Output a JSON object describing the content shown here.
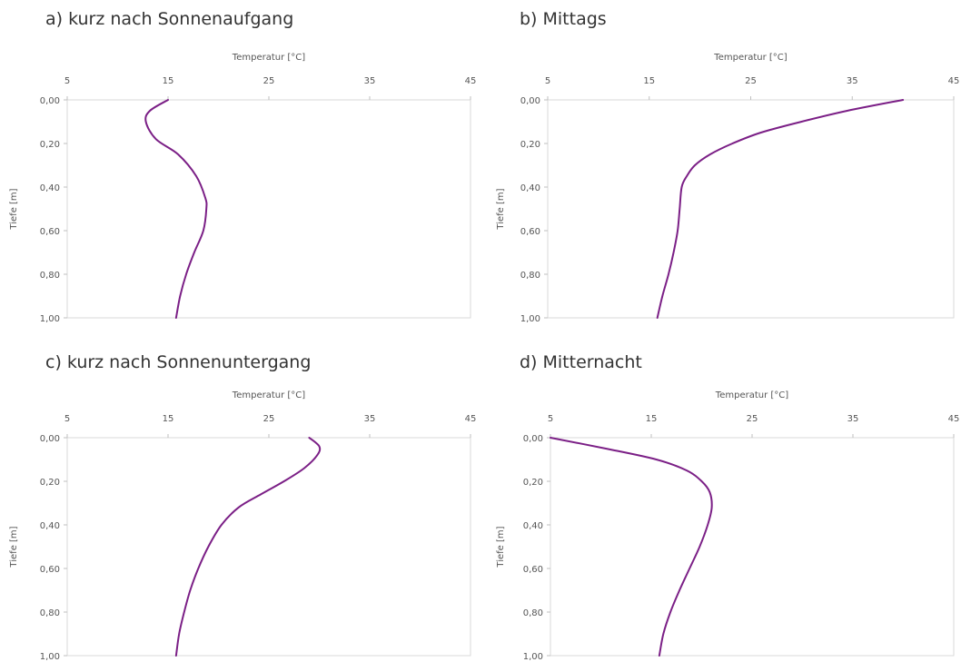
{
  "chart_data": [
    {
      "type": "line",
      "title": "a) kurz nach Sonnenaufgang",
      "xlabel": "Temperatur [°C]",
      "ylabel": "Tiefe [m]",
      "xlim": [
        5,
        45
      ],
      "ylim": [
        0,
        1
      ],
      "x_axis_position": "top",
      "y_axis_inverted": true,
      "x_ticks": [
        "5",
        "15",
        "25",
        "35",
        "45"
      ],
      "y_ticks": [
        "0,00",
        "0,20",
        "0,40",
        "0,60",
        "0,80",
        "1,00"
      ],
      "grid": false,
      "series": [
        {
          "color": "#7b1f86",
          "points": [
            {
              "temperature": 15.0,
              "depth": 0.0
            },
            {
              "temperature": 13.2,
              "depth": 0.05
            },
            {
              "temperature": 12.8,
              "depth": 0.1
            },
            {
              "temperature": 13.8,
              "depth": 0.18
            },
            {
              "temperature": 16.0,
              "depth": 0.25
            },
            {
              "temperature": 17.8,
              "depth": 0.35
            },
            {
              "temperature": 18.7,
              "depth": 0.45
            },
            {
              "temperature": 18.8,
              "depth": 0.5
            },
            {
              "temperature": 18.5,
              "depth": 0.6
            },
            {
              "temperature": 17.6,
              "depth": 0.7
            },
            {
              "temperature": 16.8,
              "depth": 0.8
            },
            {
              "temperature": 16.2,
              "depth": 0.9
            },
            {
              "temperature": 15.8,
              "depth": 1.0
            }
          ]
        }
      ]
    },
    {
      "type": "line",
      "title": "b) Mittags",
      "xlabel": "Temperatur [°C]",
      "ylabel": "Tiefe [m]",
      "xlim": [
        5,
        45
      ],
      "ylim": [
        0,
        1
      ],
      "x_axis_position": "top",
      "y_axis_inverted": true,
      "x_ticks": [
        "5",
        "15",
        "25",
        "35",
        "45"
      ],
      "y_ticks": [
        "0,00",
        "0,20",
        "0,40",
        "0,60",
        "0,80",
        "1,00"
      ],
      "grid": false,
      "series": [
        {
          "color": "#7b1f86",
          "points": [
            {
              "temperature": 40.0,
              "depth": 0.0
            },
            {
              "temperature": 34.5,
              "depth": 0.05
            },
            {
              "temperature": 30.0,
              "depth": 0.1
            },
            {
              "temperature": 26.0,
              "depth": 0.15
            },
            {
              "temperature": 23.2,
              "depth": 0.2
            },
            {
              "temperature": 21.0,
              "depth": 0.25
            },
            {
              "temperature": 19.5,
              "depth": 0.3
            },
            {
              "temperature": 18.7,
              "depth": 0.35
            },
            {
              "temperature": 18.2,
              "depth": 0.4
            },
            {
              "temperature": 18.0,
              "depth": 0.5
            },
            {
              "temperature": 17.8,
              "depth": 0.6
            },
            {
              "temperature": 17.4,
              "depth": 0.7
            },
            {
              "temperature": 16.9,
              "depth": 0.8
            },
            {
              "temperature": 16.3,
              "depth": 0.9
            },
            {
              "temperature": 15.8,
              "depth": 1.0
            }
          ]
        }
      ]
    },
    {
      "type": "line",
      "title": "c) kurz nach Sonnenuntergang",
      "xlabel": "Temperatur [°C]",
      "ylabel": "Tiefe [m]",
      "xlim": [
        5,
        45
      ],
      "ylim": [
        0,
        1
      ],
      "x_axis_position": "top",
      "y_axis_inverted": true,
      "x_ticks": [
        "5",
        "15",
        "25",
        "35",
        "45"
      ],
      "y_ticks": [
        "0,00",
        "0,20",
        "0,40",
        "0,60",
        "0,80",
        "1,00"
      ],
      "grid": false,
      "series": [
        {
          "color": "#7b1f86",
          "points": [
            {
              "temperature": 29.0,
              "depth": 0.0
            },
            {
              "temperature": 30.0,
              "depth": 0.04
            },
            {
              "temperature": 29.8,
              "depth": 0.08
            },
            {
              "temperature": 28.5,
              "depth": 0.14
            },
            {
              "temperature": 26.5,
              "depth": 0.2
            },
            {
              "temperature": 24.2,
              "depth": 0.26
            },
            {
              "temperature": 22.0,
              "depth": 0.32
            },
            {
              "temperature": 20.3,
              "depth": 0.4
            },
            {
              "temperature": 19.0,
              "depth": 0.5
            },
            {
              "temperature": 18.0,
              "depth": 0.6
            },
            {
              "temperature": 17.2,
              "depth": 0.7
            },
            {
              "temperature": 16.6,
              "depth": 0.8
            },
            {
              "temperature": 16.1,
              "depth": 0.9
            },
            {
              "temperature": 15.8,
              "depth": 1.0
            }
          ]
        }
      ]
    },
    {
      "type": "line",
      "title": "d) Mitternacht",
      "xlabel": "Temperatur [°C]",
      "ylabel": "Tiefe [m]",
      "xlim": [
        5,
        45
      ],
      "ylim": [
        0,
        1
      ],
      "x_axis_position": "top",
      "y_axis_inverted": true,
      "x_ticks": [
        "5",
        "15",
        "25",
        "35",
        "45"
      ],
      "y_ticks": [
        "0,00",
        "0,20",
        "0,40",
        "0,60",
        "0,80",
        "1,00"
      ],
      "grid": false,
      "series": [
        {
          "color": "#7b1f86",
          "points": [
            {
              "temperature": 5.0,
              "depth": 0.0
            },
            {
              "temperature": 10.5,
              "depth": 0.05
            },
            {
              "temperature": 15.5,
              "depth": 0.1
            },
            {
              "temperature": 18.5,
              "depth": 0.15
            },
            {
              "temperature": 20.0,
              "depth": 0.2
            },
            {
              "temperature": 20.8,
              "depth": 0.25
            },
            {
              "temperature": 21.0,
              "depth": 0.32
            },
            {
              "temperature": 20.6,
              "depth": 0.4
            },
            {
              "temperature": 19.8,
              "depth": 0.5
            },
            {
              "temperature": 18.8,
              "depth": 0.6
            },
            {
              "temperature": 17.8,
              "depth": 0.7
            },
            {
              "temperature": 16.9,
              "depth": 0.8
            },
            {
              "temperature": 16.2,
              "depth": 0.9
            },
            {
              "temperature": 15.8,
              "depth": 1.0
            }
          ]
        }
      ]
    }
  ]
}
